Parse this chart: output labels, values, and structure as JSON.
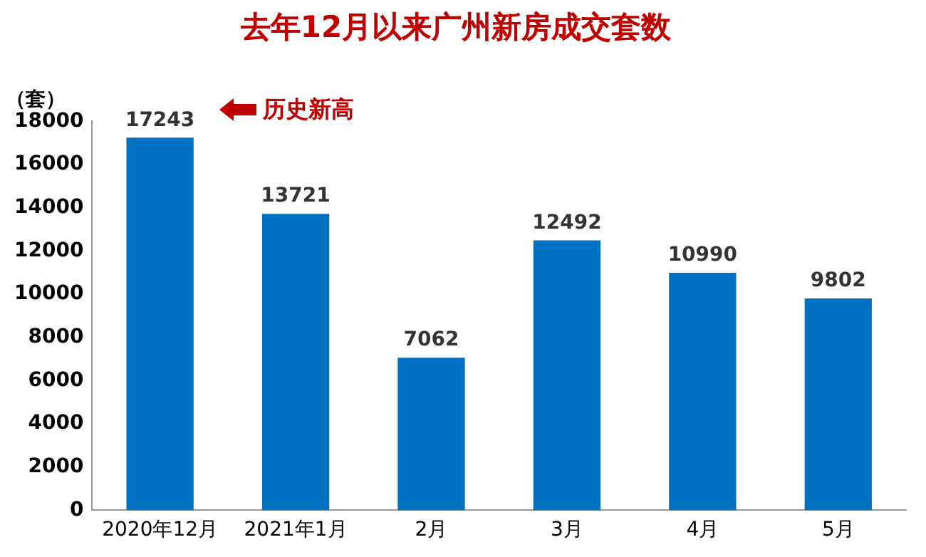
{
  "chart_data": {
    "type": "bar",
    "title": "去年12月以来广州新房成交套数",
    "ylabel": "（套）",
    "categories": [
      "2020年12月",
      "2021年1月",
      "2月",
      "3月",
      "4月",
      "5月"
    ],
    "values": [
      17243,
      13721,
      7062,
      12492,
      10990,
      9802
    ],
    "color": "#0070c0",
    "ylim": [
      0,
      18000
    ],
    "yticks": [
      0,
      2000,
      4000,
      6000,
      8000,
      10000,
      12000,
      14000,
      16000,
      18000
    ],
    "grid": false,
    "legend": false,
    "data_labels": true,
    "annotations": [
      "历史新高"
    ]
  }
}
